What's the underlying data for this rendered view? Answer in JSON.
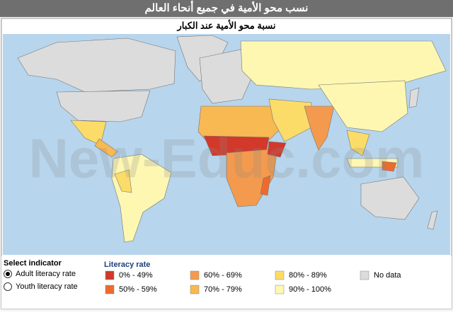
{
  "header": {
    "title": "نسب محو الأمية في جميع أنحاء العالم"
  },
  "map": {
    "title": "نسبة محو الأمية عند الكبار",
    "watermark": "New-Educ.com"
  },
  "indicator": {
    "label": "Select indicator",
    "options": [
      "Adult literacy rate",
      "Youth literacy rate"
    ],
    "selected": 0
  },
  "legend": {
    "title": "Literacy rate",
    "items": [
      {
        "label": "0% - 49%",
        "color": "#d2392a"
      },
      {
        "label": "50% - 59%",
        "color": "#ee6a2e"
      },
      {
        "label": "60% - 69%",
        "color": "#f39a4e"
      },
      {
        "label": "70% - 79%",
        "color": "#f8b852"
      },
      {
        "label": "80% - 89%",
        "color": "#fbdc68"
      },
      {
        "label": "90% - 100%",
        "color": "#fdf7b2"
      },
      {
        "label": "No data",
        "color": "#dcdcdc"
      }
    ]
  }
}
